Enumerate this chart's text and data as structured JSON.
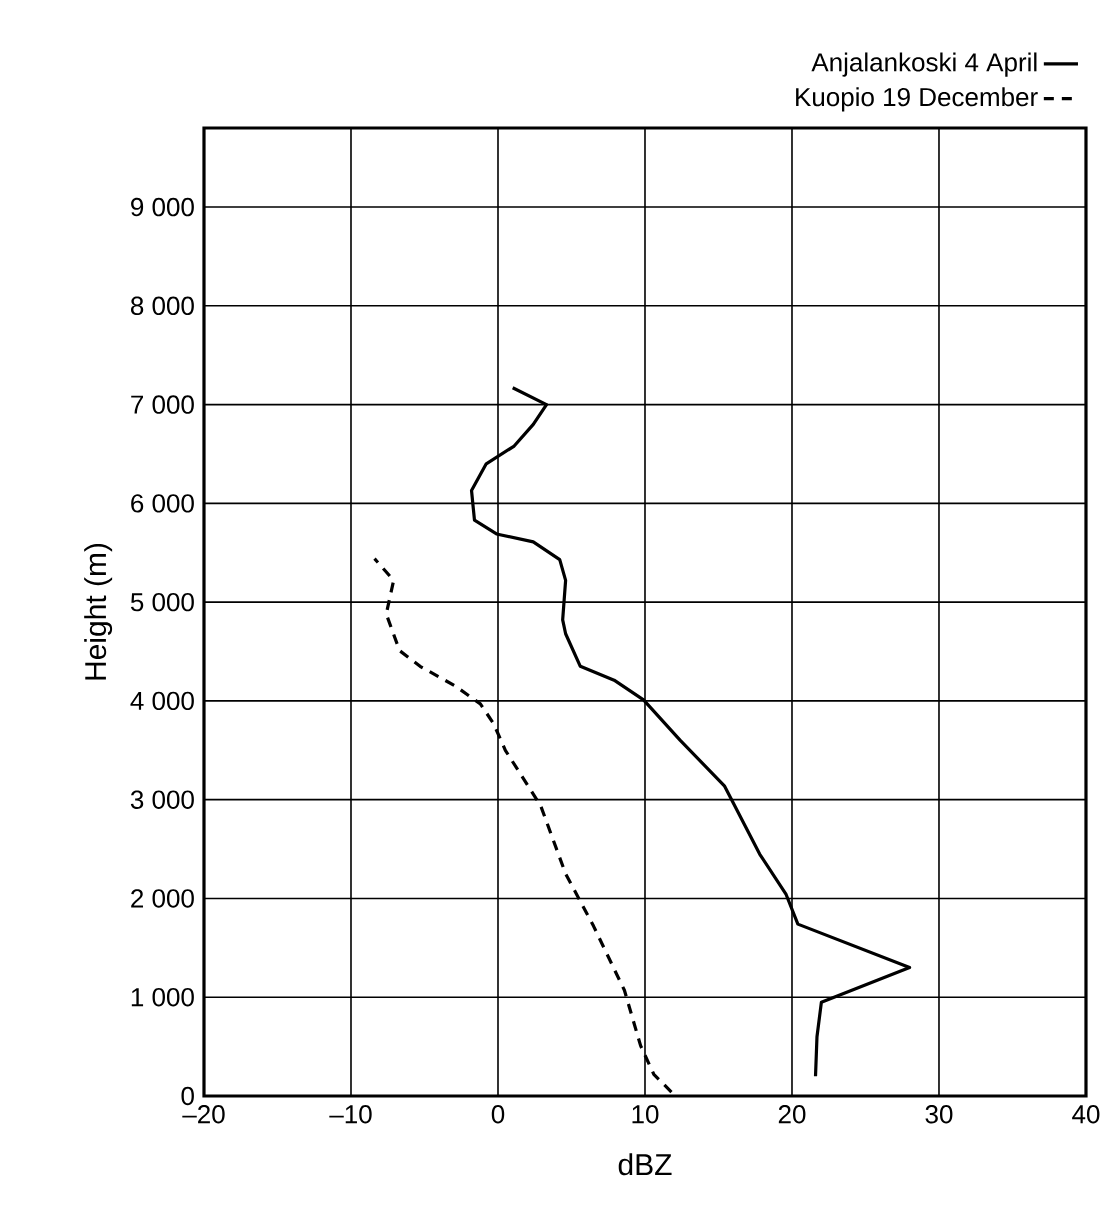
{
  "chart_data": {
    "type": "line",
    "xlabel": "dBZ",
    "ylabel": "Height (m)",
    "xlim": [
      -20,
      40
    ],
    "ylim": [
      0,
      9800
    ],
    "xticks": [
      {
        "value": -20,
        "label": "–20"
      },
      {
        "value": -10,
        "label": "–10"
      },
      0,
      10,
      20,
      30,
      40
    ],
    "yticks": [
      0,
      {
        "value": 1000,
        "label": "1 000"
      },
      {
        "value": 2000,
        "label": "2 000"
      },
      {
        "value": 3000,
        "label": "3 000"
      },
      {
        "value": 4000,
        "label": "4 000"
      },
      {
        "value": 5000,
        "label": "5 000"
      },
      {
        "value": 6000,
        "label": "6 000"
      },
      {
        "value": 7000,
        "label": "7 000"
      },
      {
        "value": 8000,
        "label": "8 000"
      },
      {
        "value": 9000,
        "label": "9 000"
      }
    ],
    "grid": true,
    "legend": "top right",
    "marker": "none",
    "series": [
      {
        "name": "Anjalankoski 4 April",
        "color": "#000000",
        "line_style": "solid",
        "x": [
          21.6,
          21.7,
          22,
          28,
          20.4,
          19.6,
          17.8,
          15.4,
          12.4,
          9.9,
          7.9,
          5.6,
          4.6,
          4.4,
          4.6,
          4.2,
          2.4,
          -0.1,
          -1.6,
          -1.8,
          -0.8,
          1.1,
          2.4,
          3.3,
          1.0
        ],
        "values": [
          200,
          600,
          950,
          1300,
          1740,
          2040,
          2450,
          3140,
          3600,
          4010,
          4210,
          4350,
          4680,
          4820,
          5220,
          5430,
          5610,
          5690,
          5830,
          6130,
          6400,
          6580,
          6800,
          7000,
          7170
        ]
      },
      {
        "name": "Kuopio 19 December",
        "color": "#000000",
        "line_style": "dashed",
        "x": [
          11.8,
          10.6,
          9.7,
          8.6,
          6.5,
          4.6,
          2.9,
          0.5,
          -0.3,
          -1.2,
          -2.9,
          -5.3,
          -6.7,
          -7.6,
          -7.1,
          -8.4
        ],
        "values": [
          40,
          220,
          510,
          1070,
          1720,
          2250,
          2940,
          3500,
          3770,
          3970,
          4150,
          4350,
          4510,
          4880,
          5220,
          5440
        ]
      }
    ]
  }
}
